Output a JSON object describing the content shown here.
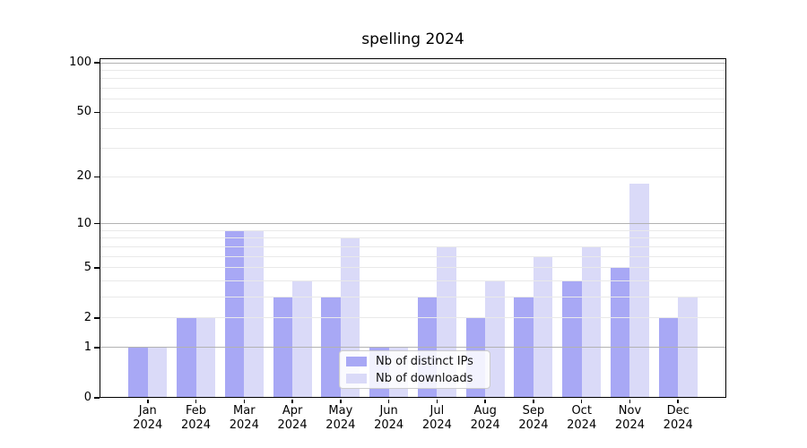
{
  "chart_data": {
    "type": "bar",
    "title": "spelling 2024",
    "categories": [
      "Jan 2024",
      "Feb 2024",
      "Mar 2024",
      "Apr 2024",
      "May 2024",
      "Jun 2024",
      "Jul 2024",
      "Aug 2024",
      "Sep 2024",
      "Oct 2024",
      "Nov 2024",
      "Dec 2024"
    ],
    "series": [
      {
        "name": "Nb of distinct IPs",
        "color": "#a8a8f5",
        "values": [
          1,
          2,
          9,
          3,
          3,
          1,
          3,
          2,
          3,
          4,
          5,
          2
        ]
      },
      {
        "name": "Nb of downloads",
        "color": "#dadaf8",
        "values": [
          1,
          2,
          9,
          4,
          8,
          1,
          7,
          4,
          6,
          7,
          18,
          3
        ]
      }
    ],
    "yscale": "log1p",
    "ylim": [
      0,
      100
    ],
    "yticks": [
      0,
      1,
      2,
      5,
      10,
      20,
      50,
      100
    ],
    "minor_gridlines": [
      2,
      3,
      4,
      5,
      6,
      7,
      8,
      9,
      20,
      30,
      40,
      50,
      60,
      70,
      80,
      90
    ],
    "major_gridlines": [
      1,
      10,
      100
    ],
    "grid": "horizontal, drawn above bars",
    "legend_position": "lower center inside plot",
    "colors": {
      "axis": "#000000",
      "grid_major": "#b2b2b2",
      "grid_minor": "#e9e9e9"
    }
  }
}
